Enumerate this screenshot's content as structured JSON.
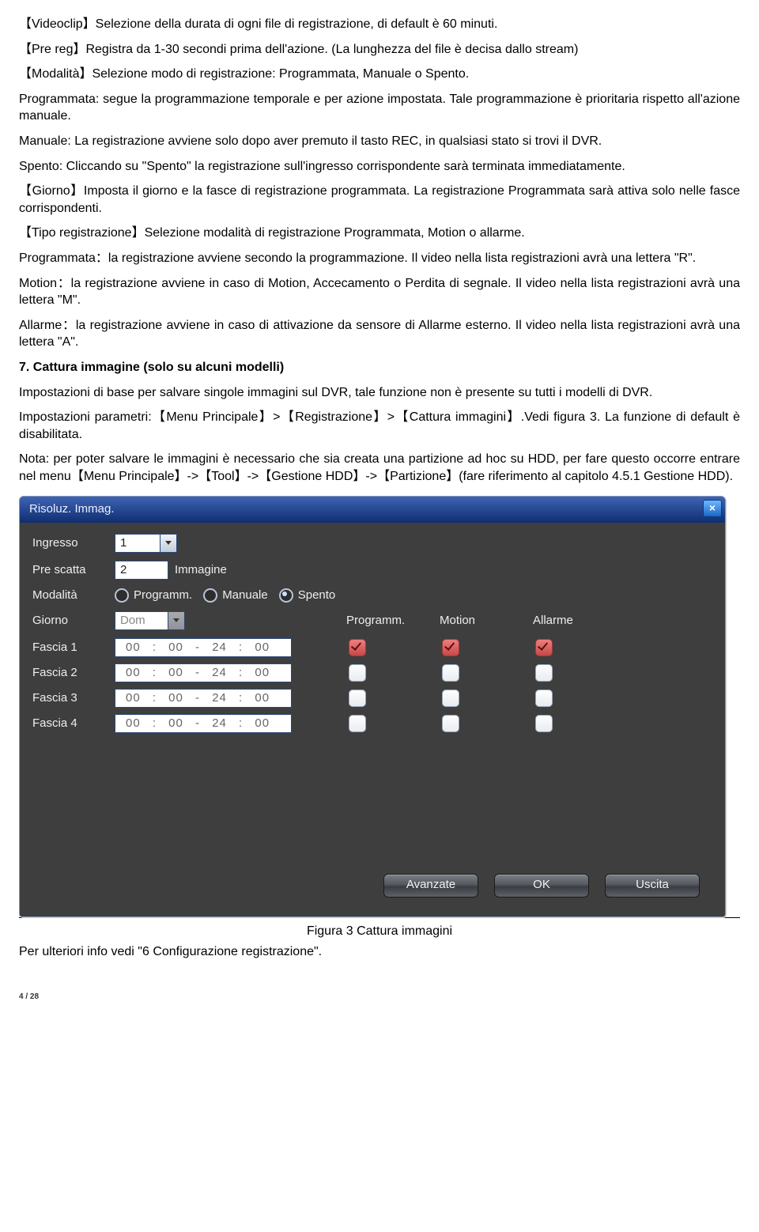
{
  "paragraphs": {
    "p1a": "【Videoclip】Selezione della durata di ogni file di registrazione, di default è 60 minuti.",
    "p1b": "【Pre reg】Registra da 1-30 secondi prima dell'azione. (La lunghezza del file è decisa dallo stream)",
    "p2": "【Modalità】Selezione modo di registrazione: Programmata, Manuale o Spento.",
    "p3": "Programmata: segue la programmazione temporale e per azione impostata. Tale programmazione è prioritaria rispetto all'azione manuale.",
    "p4": "Manuale: La registrazione avviene solo dopo aver premuto il tasto REC, in qualsiasi stato si trovi il DVR.",
    "p5": "Spento: Cliccando su \"Spento\" la registrazione sull'ingresso corrispondente sarà terminata immediatamente.",
    "p6": "【Giorno】Imposta il giorno e la fasce di registrazione programmata. La registrazione Programmata sarà attiva solo nelle fasce corrispondenti.",
    "p7": "【Tipo registrazione】Selezione modalità di registrazione Programmata, Motion o allarme.",
    "p8": "Programmata：la registrazione avviene secondo la programmazione. Il video nella lista registrazioni avrà una lettera \"R\".",
    "p9": "Motion：la registrazione avviene in caso di Motion, Accecamento o Perdita di segnale. Il video nella lista registrazioni avrà una lettera \"M\".",
    "p10": "Allarme：la registrazione avviene in caso di attivazione da sensore di Allarme esterno. Il video nella lista registrazioni avrà una lettera \"A\".",
    "h7": "7. Cattura immagine (solo su alcuni modelli)",
    "p11": "Impostazioni di base per salvare singole immagini sul DVR, tale funzione non è presente su tutti i modelli di DVR.",
    "p12": "Impostazioni parametri:【Menu Principale】>【Registrazione】>【Cattura immagini】.Vedi figura 3. La funzione di default è disabilitata.",
    "p13": "Nota: per poter salvare le immagini è necessario che sia creata una partizione ad hoc su HDD, per fare questo occorre entrare nel menu【Menu Principale】->【Tool】->【Gestione HDD】->【Partizione】(fare riferimento al capitolo 4.5.1 Gestione HDD).",
    "caption": "Figura 3 Cattura immagini",
    "p14": "Per ulteriori info vedi \"6 Configurazione registrazione\".",
    "pagenum": "4 / 28"
  },
  "dialog": {
    "title": "Risoluz. Immag.",
    "labels": {
      "ingresso": "Ingresso",
      "prescatta": "Pre scatta",
      "immagine": "Immagine",
      "modalita": "Modalità",
      "giorno": "Giorno",
      "programm_col": "Programm.",
      "motion_col": "Motion",
      "allarme_col": "Allarme",
      "fascia1": "Fascia 1",
      "fascia2": "Fascia 2",
      "fascia3": "Fascia 3",
      "fascia4": "Fascia 4"
    },
    "values": {
      "ingresso": "1",
      "prescatta": "2",
      "giorno": "Dom",
      "time": "00 : 00   -   24 : 00"
    },
    "radios": {
      "programm": "Programm.",
      "manuale": "Manuale",
      "spento": "Spento",
      "selected": "spento"
    },
    "fasce": [
      {
        "label": "Fascia 1",
        "checked": [
          true,
          true,
          true
        ]
      },
      {
        "label": "Fascia 2",
        "checked": [
          false,
          false,
          false
        ]
      },
      {
        "label": "Fascia 3",
        "checked": [
          false,
          false,
          false
        ]
      },
      {
        "label": "Fascia 4",
        "checked": [
          false,
          false,
          false
        ]
      }
    ],
    "buttons": {
      "advanced": "Avanzate",
      "ok": "OK",
      "exit": "Uscita"
    }
  }
}
